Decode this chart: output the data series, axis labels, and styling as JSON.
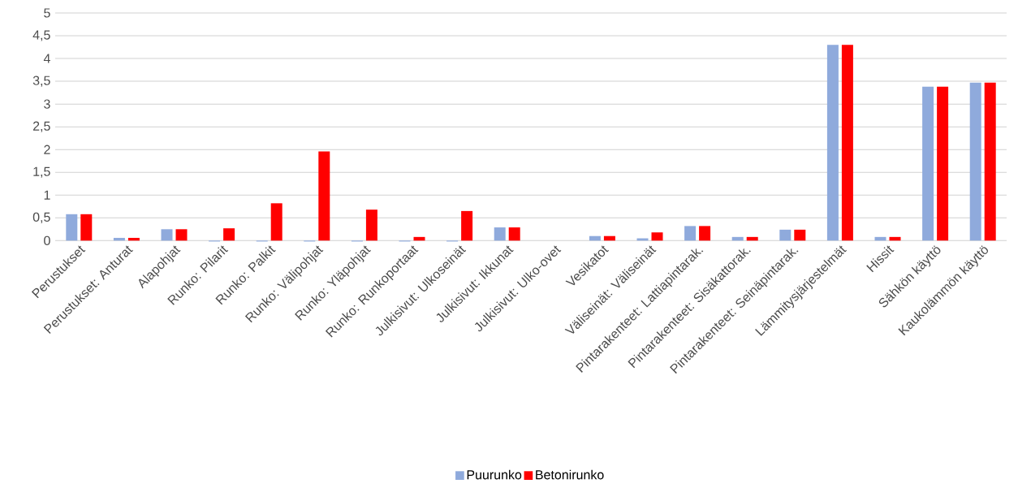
{
  "chart_data": {
    "type": "bar",
    "categories": [
      "Perustukset",
      "Perustukset: Anturat",
      "Alapohjat",
      "Runko: Pilarit",
      "Runko: Palkit",
      "Runko: Välipohjat",
      "Runko: Yläpohjat",
      "Runko: Runkoportaat",
      "Julkisivut: Ulkoseinät",
      "Julkisivut: Ikkunat",
      "Julkisivut: Ulko-ovet",
      "Vesikatot",
      "Väliseinät: Väliseinät",
      "Pintarakenteet: Lattiapintarak.",
      "Pintarakenteet: Sisäkattorak.",
      "Pintarakenteet: Seinäpintarak.",
      "Lämmitysjärjestelmät",
      "Hissit",
      "Sähkön käyttö",
      "Kaukolämmön käyttö"
    ],
    "series": [
      {
        "name": "Puurunko",
        "color": "#8faadc",
        "values": [
          0.58,
          0.06,
          0.25,
          -0.02,
          -0.02,
          -0.02,
          -0.02,
          -0.02,
          -0.02,
          0.29,
          null,
          0.1,
          0.05,
          0.32,
          0.08,
          0.24,
          4.3,
          0.08,
          3.38,
          3.47
        ]
      },
      {
        "name": "Betonirunko",
        "color": "#ff0000",
        "values": [
          0.58,
          0.06,
          0.25,
          0.27,
          0.82,
          1.96,
          0.68,
          0.08,
          0.65,
          0.29,
          null,
          0.1,
          0.18,
          0.32,
          0.08,
          0.24,
          4.3,
          0.08,
          3.38,
          3.47
        ]
      }
    ],
    "ylim": [
      -0.03,
      5
    ],
    "yticks": [
      0,
      {
        "value": 0.5,
        "label": "0,5"
      },
      1,
      {
        "value": 1.5,
        "label": "1,5"
      },
      2,
      {
        "value": 2.5,
        "label": "2,5"
      },
      3,
      {
        "value": 3.5,
        "label": "3,5"
      },
      4,
      {
        "value": 4.5,
        "label": "4,5"
      },
      5
    ],
    "grid": "y",
    "legend": "bottom"
  }
}
